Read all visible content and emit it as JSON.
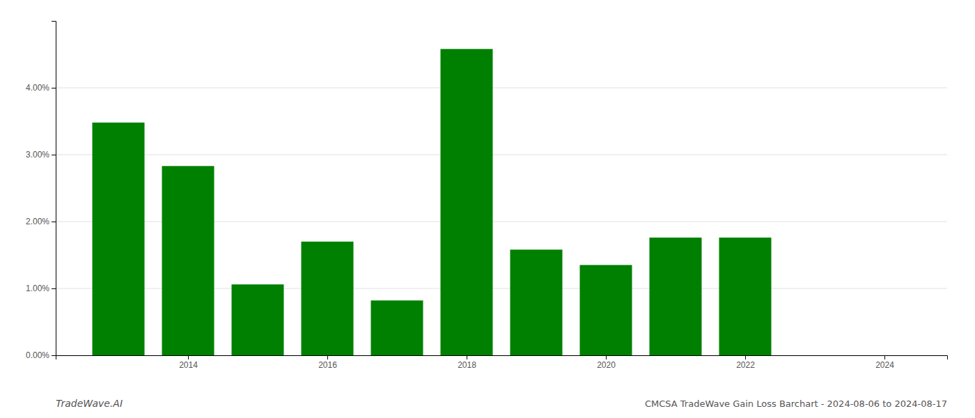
{
  "chart_data": {
    "type": "bar",
    "x": [
      2013,
      2014,
      2015,
      2016,
      2017,
      2018,
      2019,
      2020,
      2021,
      2022,
      2023
    ],
    "values": [
      0.0348,
      0.0283,
      0.0106,
      0.017,
      0.0082,
      0.0458,
      0.0158,
      0.0135,
      0.0176,
      0.0176,
      0.0
    ],
    "color": "#008000",
    "xlim": [
      2012.1,
      2024.9
    ],
    "xticks": [
      2014,
      2016,
      2018,
      2020,
      2022,
      2024
    ],
    "ylim": [
      0,
      0.05
    ],
    "yticks": [
      {
        "value": 0.0,
        "label": "0.00%"
      },
      {
        "value": 0.01,
        "label": "1.00%"
      },
      {
        "value": 0.02,
        "label": "2.00%"
      },
      {
        "value": 0.03,
        "label": "3.00%"
      },
      {
        "value": 0.04,
        "label": "4.00%"
      }
    ],
    "grid": true,
    "annotations": [
      "TradeWave.AI",
      "CMCSA TradeWave Gain Loss Barchart - 2024-08-06 to 2024-08-17"
    ]
  }
}
